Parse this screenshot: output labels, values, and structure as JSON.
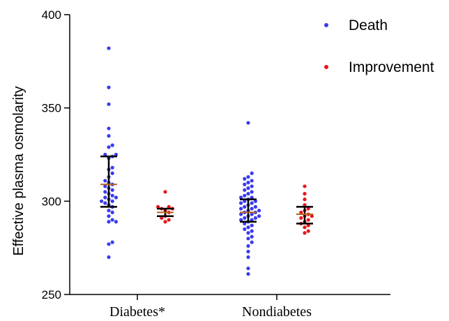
{
  "chart_data": {
    "type": "scatter",
    "title": "",
    "xlabel": "",
    "ylabel": "Effective plasma osmolarity",
    "ylim": [
      250,
      400
    ],
    "yticks": [
      250,
      300,
      350,
      400
    ],
    "categories": [
      "Diabetes*",
      "Nondiabetes"
    ],
    "grid": false,
    "legend_position": "top-right",
    "series": [
      {
        "name": "Death",
        "color": "#3a3af0",
        "groups": [
          {
            "category": "Diabetes*",
            "values": [
              382,
              361,
              352,
              339,
              335,
              330,
              329,
              325,
              325,
              324,
              323,
              318,
              317,
              315,
              313,
              311,
              310,
              309,
              308,
              307,
              306,
              305,
              304,
              303,
              302,
              302,
              301,
              300,
              300,
              299,
              298,
              297,
              295,
              294,
              292,
              290,
              289,
              289,
              278,
              277,
              270
            ],
            "mean": 309,
            "upper": 324,
            "lower": 297
          },
          {
            "category": "Nondiabetes",
            "values": [
              342,
              315,
              313,
              312,
              311,
              310,
              309,
              308,
              307,
              306,
              305,
              304,
              303,
              302,
              302,
              301,
              300,
              300,
              299,
              299,
              298,
              297,
              297,
              296,
              296,
              295,
              295,
              294,
              294,
              293,
              293,
              292,
              292,
              291,
              291,
              290,
              290,
              289,
              288,
              287,
              286,
              285,
              284,
              283,
              281,
              280,
              278,
              276,
              273,
              270,
              264,
              261
            ],
            "mean": 294,
            "upper": 301,
            "lower": 289
          }
        ]
      },
      {
        "name": "Improvement",
        "color": "#e8161c",
        "groups": [
          {
            "category": "Diabetes*",
            "values": [
              305,
              297,
              297,
              296,
              296,
              295,
              294,
              292,
              291,
              290,
              289
            ],
            "mean": 294,
            "upper": 296,
            "lower": 292
          },
          {
            "category": "Nondiabetes",
            "values": [
              308,
              304,
              301,
              298,
              296,
              295,
              294,
              293,
              292,
              292,
              291,
              290,
              289,
              288,
              287,
              286,
              284,
              283
            ],
            "mean": 293,
            "upper": 297,
            "lower": 288
          }
        ]
      }
    ]
  }
}
